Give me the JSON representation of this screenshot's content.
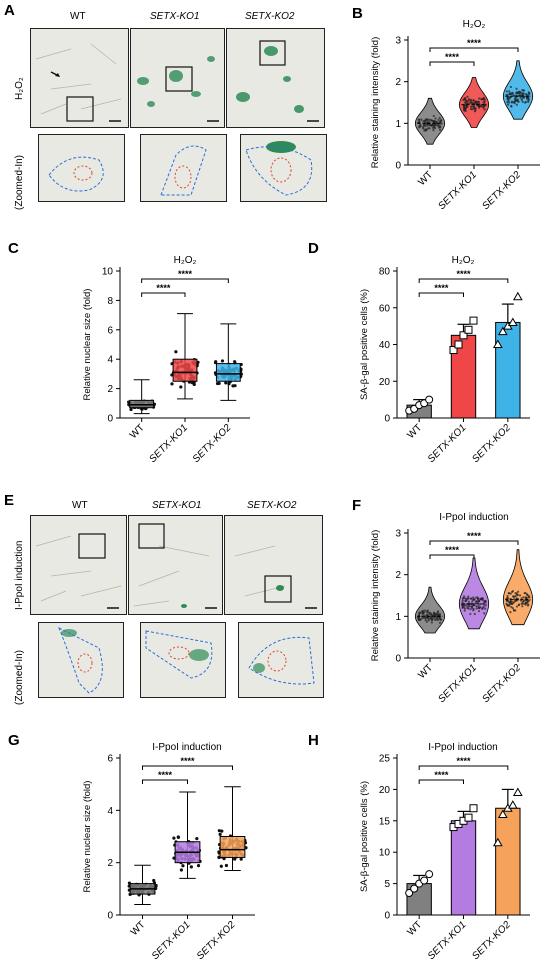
{
  "panels": {
    "A": {
      "letter": "A",
      "row_label": "H₂O₂",
      "zoom_label": "(Zoomed-In)",
      "columns": [
        "WT",
        "SETX-KO1",
        "SETX-KO2"
      ]
    },
    "E": {
      "letter": "E",
      "row_label": "I-PpoI induction",
      "zoom_label": "(Zoomed-In)",
      "columns": [
        "WT",
        "SETX-KO1",
        "SETX-KO2"
      ]
    }
  },
  "colors": {
    "wt": "#808080",
    "ko1_red": "#ef4747",
    "ko2_blue": "#3fb3e8",
    "ko1_purple": "#b47ce0",
    "ko2_orange": "#f7a25a",
    "stain_green": "#2e8b57"
  },
  "chart_data": [
    {
      "id": "B",
      "letter": "B",
      "type": "violin",
      "title": "H₂O₂",
      "ylabel": "Relative staining intensity (fold)",
      "ylim": [
        0,
        3
      ],
      "yticks": [
        0,
        1,
        2,
        3
      ],
      "categories": [
        "WT",
        "SETX-KO1",
        "SETX-KO2"
      ],
      "series": [
        {
          "category": "WT",
          "median": 1.0,
          "min": 0.5,
          "max": 1.6,
          "color": "#808080"
        },
        {
          "category": "SETX-KO1",
          "median": 1.45,
          "min": 0.9,
          "max": 2.1,
          "color": "#ef4747"
        },
        {
          "category": "SETX-KO2",
          "median": 1.65,
          "min": 1.1,
          "max": 2.5,
          "color": "#3fb3e8"
        }
      ],
      "significance": [
        {
          "from": 0,
          "to": 1,
          "label": "****"
        },
        {
          "from": 0,
          "to": 2,
          "label": "****"
        }
      ]
    },
    {
      "id": "C",
      "letter": "C",
      "type": "box",
      "title": "H₂O₂",
      "ylabel": "Relative nuclear size (fold)",
      "ylim": [
        0,
        10
      ],
      "yticks": [
        0,
        2,
        4,
        6,
        8,
        10
      ],
      "categories": [
        "WT",
        "SETX-KO1",
        "SETX-KO2"
      ],
      "series": [
        {
          "category": "WT",
          "min": 0.3,
          "q1": 0.7,
          "median": 0.9,
          "q3": 1.2,
          "max": 2.6,
          "color": "#808080"
        },
        {
          "category": "SETX-KO1",
          "min": 1.3,
          "q1": 2.5,
          "median": 3.1,
          "q3": 4.0,
          "max": 7.1,
          "color": "#ef4747"
        },
        {
          "category": "SETX-KO2",
          "min": 1.2,
          "q1": 2.5,
          "median": 3.0,
          "q3": 3.7,
          "max": 6.4,
          "color": "#3fb3e8"
        }
      ],
      "significance": [
        {
          "from": 0,
          "to": 1,
          "label": "****"
        },
        {
          "from": 0,
          "to": 2,
          "label": "****"
        }
      ]
    },
    {
      "id": "D",
      "letter": "D",
      "type": "bar",
      "title": "H₂O₂",
      "ylabel": "SA-β-gal positive cells (%)",
      "ylim": [
        0,
        80
      ],
      "yticks": [
        0,
        20,
        40,
        60,
        80
      ],
      "categories": [
        "WT",
        "SETX-KO1",
        "SETX-KO2"
      ],
      "series": [
        {
          "category": "WT",
          "mean": 7,
          "error": 3,
          "points": [
            4,
            5,
            7,
            8,
            10
          ],
          "color": "#808080",
          "marker": "circle"
        },
        {
          "category": "SETX-KO1",
          "mean": 45,
          "error": 6,
          "points": [
            37,
            40,
            45,
            48,
            53
          ],
          "color": "#ef4747",
          "marker": "square"
        },
        {
          "category": "SETX-KO2",
          "mean": 52,
          "error": 10,
          "points": [
            40,
            47,
            50,
            52,
            66
          ],
          "color": "#3fb3e8",
          "marker": "triangle"
        }
      ],
      "significance": [
        {
          "from": 0,
          "to": 1,
          "label": "****"
        },
        {
          "from": 0,
          "to": 2,
          "label": "****"
        }
      ]
    },
    {
      "id": "F",
      "letter": "F",
      "type": "violin",
      "title": "I-PpoI induction",
      "ylabel": "Relative staining intensity (fold)",
      "ylim": [
        0,
        3
      ],
      "yticks": [
        0,
        1,
        2,
        3
      ],
      "categories": [
        "WT",
        "SETX-KO1",
        "SETX-KO2"
      ],
      "series": [
        {
          "category": "WT",
          "median": 1.0,
          "min": 0.6,
          "max": 1.7,
          "color": "#808080"
        },
        {
          "category": "SETX-KO1",
          "median": 1.3,
          "min": 0.7,
          "max": 2.4,
          "color": "#b47ce0"
        },
        {
          "category": "SETX-KO2",
          "median": 1.4,
          "min": 0.8,
          "max": 2.6,
          "color": "#f7a25a"
        }
      ],
      "significance": [
        {
          "from": 0,
          "to": 1,
          "label": "****"
        },
        {
          "from": 0,
          "to": 2,
          "label": "****"
        }
      ]
    },
    {
      "id": "G",
      "letter": "G",
      "type": "box",
      "title": "I-PpoI induction",
      "ylabel": "Relative nuclear size (fold)",
      "ylim": [
        0,
        6
      ],
      "yticks": [
        0,
        2,
        4,
        6
      ],
      "categories": [
        "WT",
        "SETX-KO1",
        "SETX-KO2"
      ],
      "series": [
        {
          "category": "WT",
          "min": 0.4,
          "q1": 0.8,
          "median": 1.0,
          "q3": 1.2,
          "max": 1.9,
          "color": "#808080"
        },
        {
          "category": "SETX-KO1",
          "min": 1.4,
          "q1": 2.0,
          "median": 2.4,
          "q3": 2.8,
          "max": 4.7,
          "color": "#b47ce0"
        },
        {
          "category": "SETX-KO2",
          "min": 1.7,
          "q1": 2.2,
          "median": 2.5,
          "q3": 3.0,
          "max": 4.9,
          "color": "#f7a25a"
        }
      ],
      "significance": [
        {
          "from": 0,
          "to": 1,
          "label": "****"
        },
        {
          "from": 0,
          "to": 2,
          "label": "****"
        }
      ]
    },
    {
      "id": "H",
      "letter": "H",
      "type": "bar",
      "title": "I-PpoI induction",
      "ylabel": "SA-β-gal positive cells (%)",
      "ylim": [
        0,
        25
      ],
      "yticks": [
        0,
        5,
        10,
        15,
        20,
        25
      ],
      "categories": [
        "WT",
        "SETX-KO1",
        "SETX-KO2"
      ],
      "series": [
        {
          "category": "WT",
          "mean": 5,
          "error": 1.3,
          "points": [
            3.5,
            4.2,
            5,
            5.5,
            6.5
          ],
          "color": "#808080",
          "marker": "circle"
        },
        {
          "category": "SETX-KO1",
          "mean": 15,
          "error": 1.5,
          "points": [
            14,
            14.5,
            15,
            15.5,
            17
          ],
          "color": "#b47ce0",
          "marker": "square"
        },
        {
          "category": "SETX-KO2",
          "mean": 17,
          "error": 3,
          "points": [
            11.5,
            16,
            17,
            17.5,
            19.5
          ],
          "color": "#f7a25a",
          "marker": "triangle"
        }
      ],
      "significance": [
        {
          "from": 0,
          "to": 1,
          "label": "****"
        },
        {
          "from": 0,
          "to": 2,
          "label": "****"
        }
      ]
    }
  ]
}
